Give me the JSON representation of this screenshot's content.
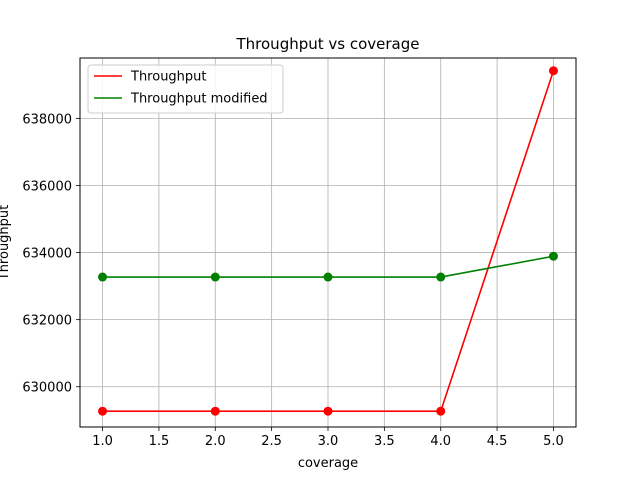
{
  "chart_data": {
    "type": "line",
    "title": "Throughput vs coverage",
    "xlabel": "coverage",
    "ylabel": "Throughput",
    "x": [
      1.0,
      2.0,
      3.0,
      4.0,
      5.0
    ],
    "xlim": [
      0.8,
      5.2
    ],
    "ylim": [
      628800,
      639800
    ],
    "xticks": [
      "1.0",
      "1.5",
      "2.0",
      "2.5",
      "3.0",
      "3.5",
      "4.0",
      "4.5",
      "5.0"
    ],
    "yticks": [
      "630000",
      "632000",
      "634000",
      "636000",
      "638000"
    ],
    "grid": true,
    "legend_position": "top-left",
    "series": [
      {
        "name": "Throughput",
        "color": "#ff0000",
        "values": [
          629270,
          629270,
          629270,
          629270,
          639420
        ]
      },
      {
        "name": "Throughput modified",
        "color": "#008000",
        "values": [
          633270,
          633270,
          633270,
          633270,
          633890
        ]
      }
    ]
  }
}
